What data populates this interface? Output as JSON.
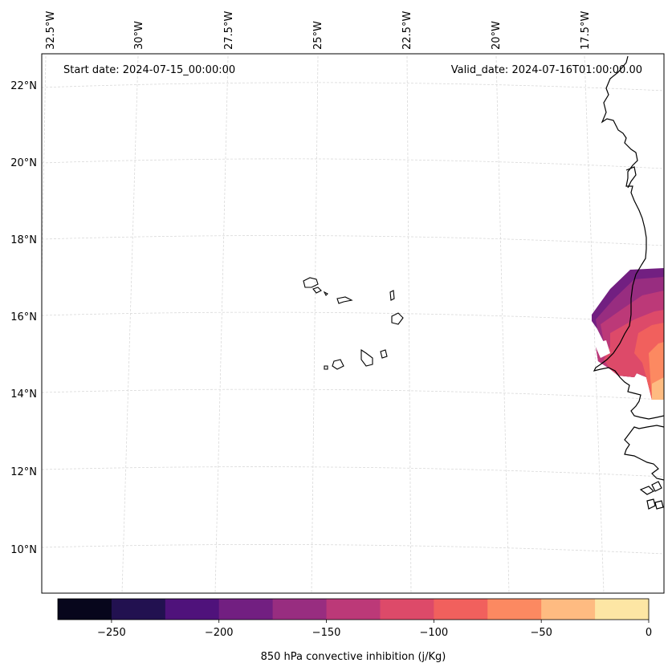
{
  "map": {
    "start_label": "Start date: 2024-07-15_00:00:00",
    "valid_label": "Valid_date: 2024-07-16T01:00:00.00",
    "lon_labels": [
      "32.5°W",
      "30°W",
      "27.5°W",
      "25°W",
      "22.5°W",
      "20°W",
      "17.5°W"
    ],
    "lat_labels": [
      "22°N",
      "20°N",
      "18°N",
      "16°N",
      "14°N",
      "12°N",
      "10°N"
    ]
  },
  "colorbar": {
    "label": "850 hPa convective inhibition (j/Kg)",
    "ticks": [
      "−250",
      "−200",
      "−150",
      "−100",
      "−50",
      "0"
    ],
    "levels": [
      -275,
      -250,
      -225,
      -200,
      -175,
      -150,
      -125,
      -100,
      -75,
      -50,
      -25,
      0
    ],
    "colors": [
      "#07061c",
      "#221150",
      "#4f127b",
      "#721f81",
      "#982d80",
      "#bc3978",
      "#dd4a69",
      "#f1605d",
      "#fc8961",
      "#febb81",
      "#fde6a4"
    ]
  }
}
